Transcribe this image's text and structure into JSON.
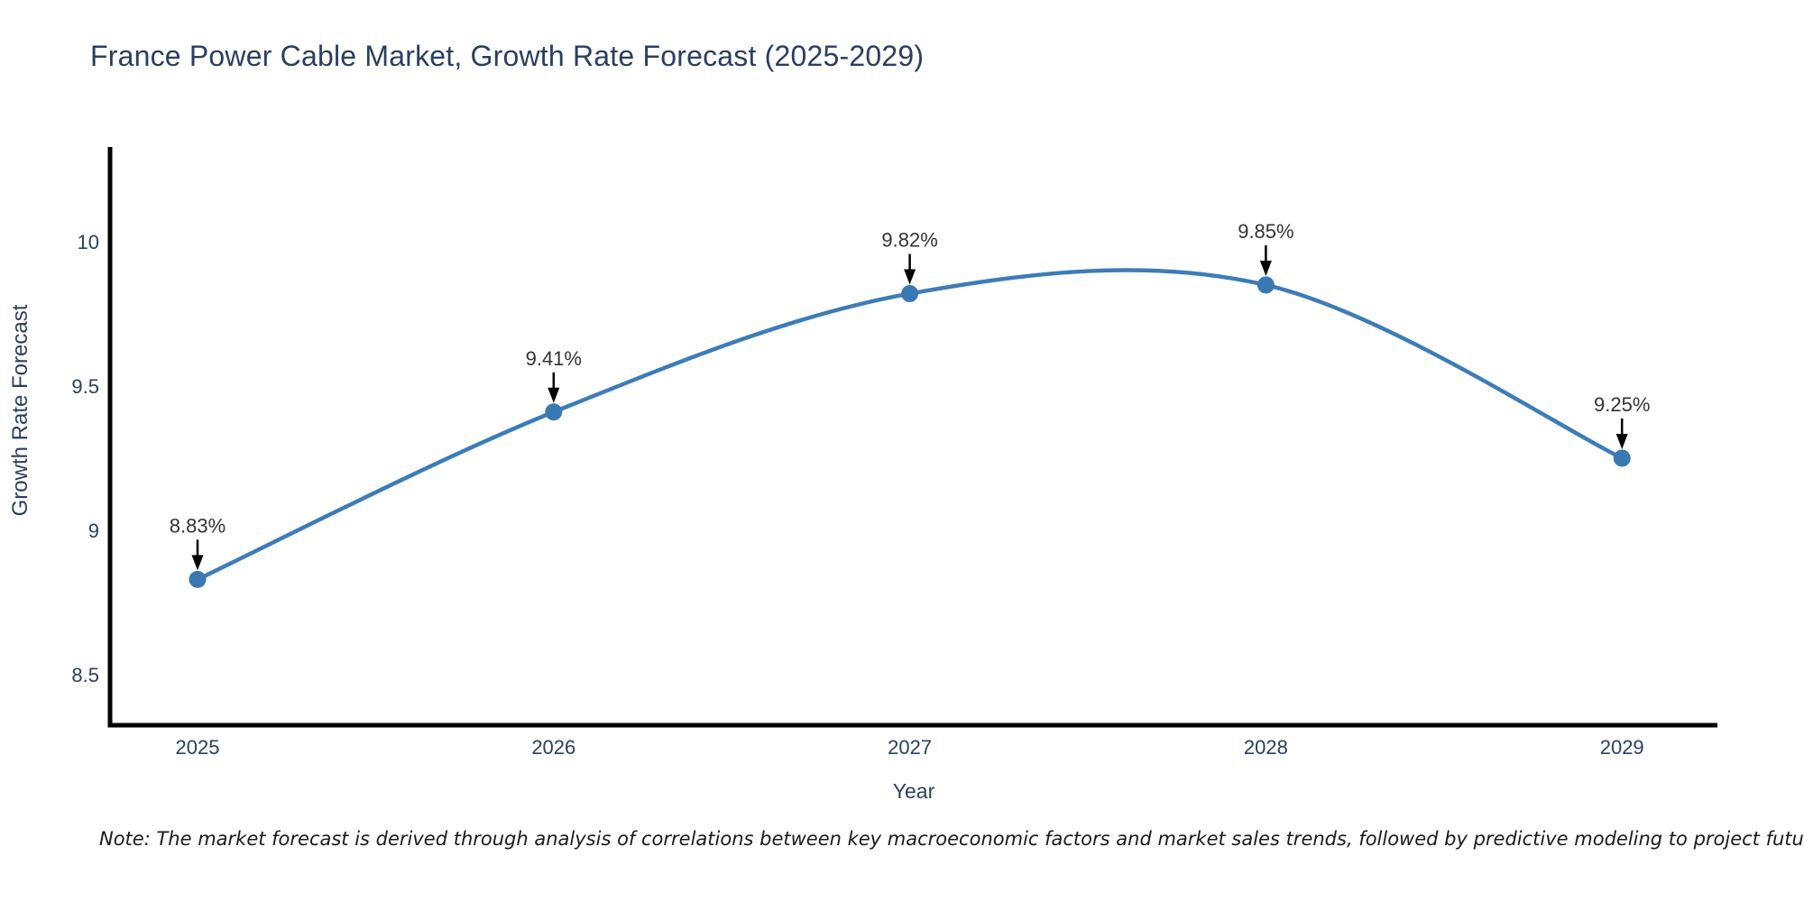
{
  "title": "France Power Cable Market, Growth Rate Forecast (2025-2029)",
  "note": "Note: The market forecast is derived through analysis of correlations between key macroeconomic factors and market sales trends, followed by predictive modeling to project future sales",
  "chart_data": {
    "type": "line",
    "title": "France Power Cable Market, Growth Rate Forecast (2025-2029)",
    "x": [
      2025,
      2026,
      2027,
      2028,
      2029
    ],
    "xtick_labels": [
      "2025",
      "2026",
      "2027",
      "2028",
      "2029"
    ],
    "series": [
      {
        "name": "Growth Rate Forecast",
        "values": [
          8.83,
          9.41,
          9.82,
          9.85,
          9.25
        ]
      }
    ],
    "point_labels": [
      "8.83%",
      "9.41%",
      "9.82%",
      "9.85%",
      "9.25%"
    ],
    "xlabel": "Year",
    "ylabel": "Growth Rate Forecast",
    "ytick_values": [
      8.5,
      9,
      9.5,
      10
    ],
    "ytick_labels": [
      "8.5",
      "9",
      "9.5",
      "10"
    ],
    "ylim": [
      8.33,
      10.33
    ],
    "grid": false,
    "legend": "none",
    "curve": "spline",
    "colors": {
      "line": "#3d7cb8",
      "marker": "#3a78b3",
      "axis": "#000000",
      "title_text": "#2a3f5f",
      "tick_text": "#2a3f5f",
      "annotation_text": "#333333",
      "arrow": "#000000",
      "background": "#ffffff"
    }
  }
}
